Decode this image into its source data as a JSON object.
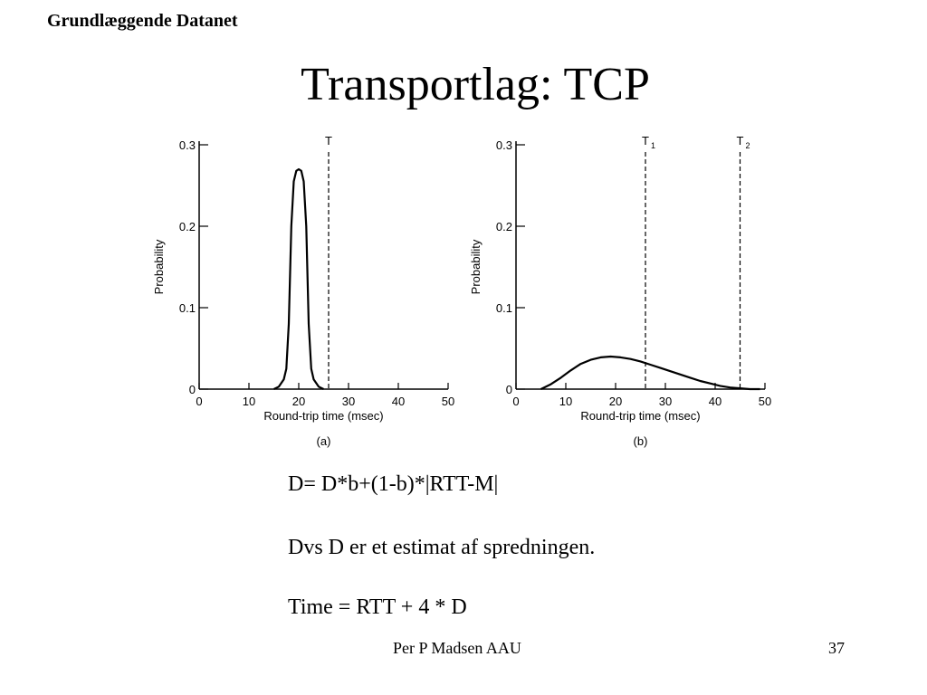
{
  "slide": {
    "header": "Grundlæggende Datanet",
    "title": "Transportlag: TCP",
    "formula": "D= D*b+(1-b)*|RTT-M|",
    "explanation": "Dvs D er et estimat af spredningen.",
    "timeout": "Time = RTT + 4 * D",
    "footer_author": "Per P Madsen AAU",
    "footer_page": "37"
  },
  "chart_data": [
    {
      "type": "line",
      "caption": "(a)",
      "xlabel": "Round-trip time (msec)",
      "ylabel": "Probability",
      "xlim": [
        0,
        50
      ],
      "ylim": [
        0,
        0.3
      ],
      "xticks": [
        0,
        10,
        20,
        30,
        40,
        50
      ],
      "yticks": [
        0,
        0.1,
        0.2,
        0.3
      ],
      "ytick_labels": [
        "0",
        "0.1",
        "0.2",
        "0.3"
      ],
      "grid": false,
      "series": [
        {
          "x": [
            15,
            16,
            17,
            17.5,
            18,
            18.5,
            19,
            19.5,
            20,
            20.5,
            21,
            21.5,
            22,
            22.5,
            23,
            24,
            25
          ],
          "y": [
            0,
            0.003,
            0.012,
            0.025,
            0.08,
            0.2,
            0.255,
            0.268,
            0.27,
            0.268,
            0.255,
            0.2,
            0.08,
            0.025,
            0.012,
            0.003,
            0
          ]
        }
      ],
      "markers": [
        {
          "label": "T",
          "sub": "",
          "x": 26
        }
      ]
    },
    {
      "type": "line",
      "caption": "(b)",
      "xlabel": "Round-trip time (msec)",
      "ylabel": "Probability",
      "xlim": [
        0,
        50
      ],
      "ylim": [
        0,
        0.3
      ],
      "xticks": [
        0,
        10,
        20,
        30,
        40,
        50
      ],
      "yticks": [
        0,
        0.1,
        0.2,
        0.3
      ],
      "ytick_labels": [
        "0",
        "0.1",
        "0.2",
        "0.3"
      ],
      "grid": false,
      "series": [
        {
          "x": [
            5,
            7,
            9,
            11,
            13,
            15,
            17,
            19,
            21,
            23,
            25,
            27,
            29,
            31,
            33,
            35,
            37,
            39,
            41,
            43,
            45,
            47,
            49
          ],
          "y": [
            0,
            0.006,
            0.014,
            0.023,
            0.031,
            0.036,
            0.039,
            0.04,
            0.039,
            0.037,
            0.034,
            0.03,
            0.026,
            0.022,
            0.018,
            0.014,
            0.01,
            0.007,
            0.004,
            0.002,
            0.001,
            0,
            0
          ]
        }
      ],
      "markers": [
        {
          "label": "T",
          "sub": "1",
          "x": 26
        },
        {
          "label": "T",
          "sub": "2",
          "x": 45
        }
      ]
    }
  ]
}
